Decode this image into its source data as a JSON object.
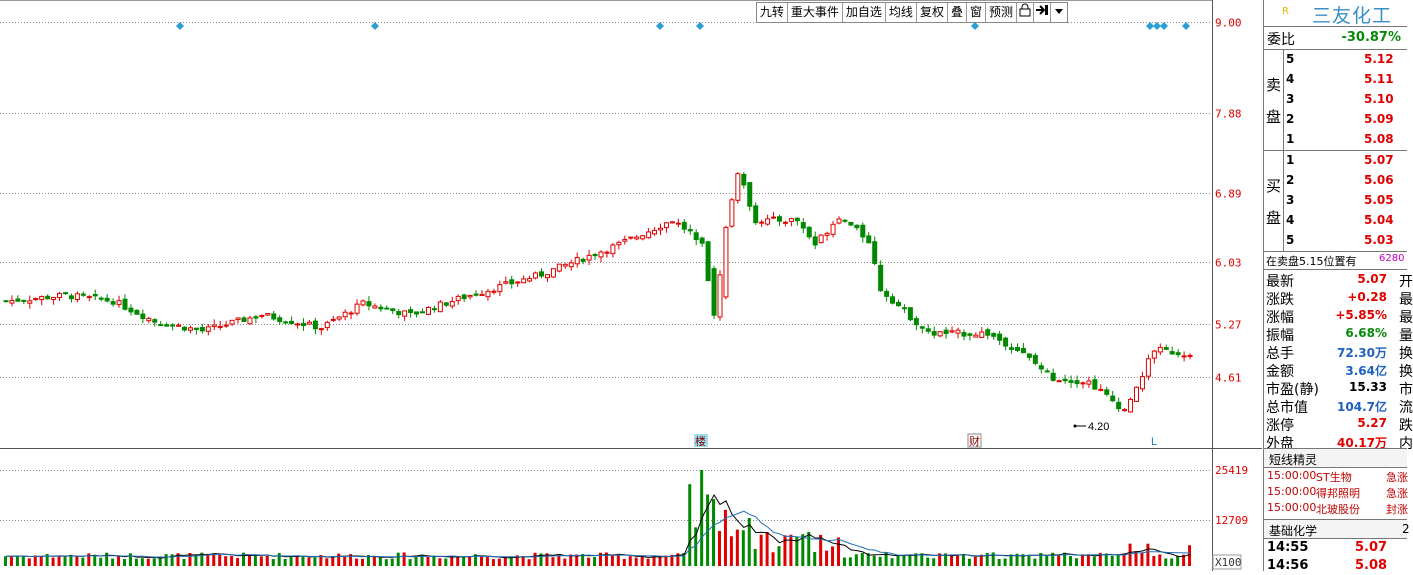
{
  "toolbar": {
    "buttons": [
      "九转",
      "重大事件",
      "加自选",
      "均线",
      "复权",
      "叠",
      "窗",
      "预测"
    ],
    "icons": [
      "lock-icon",
      "pin-icon",
      "dropdown-arrow-icon"
    ]
  },
  "price_axis": [
    "9.00",
    "7.88",
    "6.89",
    "6.03",
    "5.27",
    "4.61"
  ],
  "volume_axis": [
    "25419",
    "12709",
    "X100"
  ],
  "annotations": {
    "low_label": "4.20",
    "marker_lou": "楼",
    "marker_cai": "财",
    "marker_l": "L"
  },
  "panel": {
    "badge": "R",
    "stock_name": "三友化工",
    "weibi_label": "委比",
    "weibi_value": "-30.87%",
    "sell_label": [
      "卖",
      "盘"
    ],
    "buy_label": [
      "买",
      "盘"
    ],
    "sell": [
      {
        "lv": "5",
        "price": "5.12"
      },
      {
        "lv": "4",
        "price": "5.11"
      },
      {
        "lv": "3",
        "price": "5.10"
      },
      {
        "lv": "2",
        "price": "5.09"
      },
      {
        "lv": "1",
        "price": "5.08"
      }
    ],
    "buy": [
      {
        "lv": "1",
        "price": "5.07"
      },
      {
        "lv": "2",
        "price": "5.06"
      },
      {
        "lv": "3",
        "price": "5.05"
      },
      {
        "lv": "4",
        "price": "5.04"
      },
      {
        "lv": "5",
        "price": "5.03"
      }
    ],
    "notice_text": "在卖盘5.15位置有",
    "notice_num": "6280",
    "quotes": [
      {
        "k": "最新",
        "v": "5.07",
        "c": "开",
        "color": "#e00000"
      },
      {
        "k": "涨跌",
        "v": "+0.28",
        "c": "最",
        "color": "#e00000"
      },
      {
        "k": "涨幅",
        "v": "+5.85%",
        "c": "最",
        "color": "#e00000"
      },
      {
        "k": "振幅",
        "v": "6.68%",
        "c": "量",
        "color": "#0a8a0a"
      },
      {
        "k": "总手",
        "v": "72.30万",
        "c": "换",
        "color": "#2060c0"
      },
      {
        "k": "金额",
        "v": "3.64亿",
        "c": "换",
        "color": "#2060c0"
      },
      {
        "k": "市盈(静)",
        "v": "15.33",
        "c": "市",
        "color": "#000000"
      },
      {
        "k": "总市值",
        "v": "104.7亿",
        "c": "流",
        "color": "#2060c0"
      },
      {
        "k": "涨停",
        "v": "5.27",
        "c": "跌",
        "color": "#e00000"
      },
      {
        "k": "外盘",
        "v": "40.17万",
        "c": "内",
        "color": "#e00000"
      }
    ],
    "sprite_title": "短线精灵",
    "alerts": [
      {
        "time": "15:00:00",
        "name": "ST生物",
        "event": "急涨"
      },
      {
        "time": "15:00:00",
        "name": "得邦照明",
        "event": "急涨"
      },
      {
        "time": "15:00:00",
        "name": "北玻股份",
        "event": "封涨"
      }
    ],
    "sector_title": "基础化学",
    "sector_extra": "2",
    "ticks": [
      {
        "time": "14:55",
        "price": "5.07"
      },
      {
        "time": "14:56",
        "price": "5.08"
      }
    ]
  },
  "colors": {
    "up": "#e00000",
    "down": "#008800",
    "diamond": "#2a9fd6",
    "ma1": "#000000",
    "ma2": "#1f6fb5"
  }
}
